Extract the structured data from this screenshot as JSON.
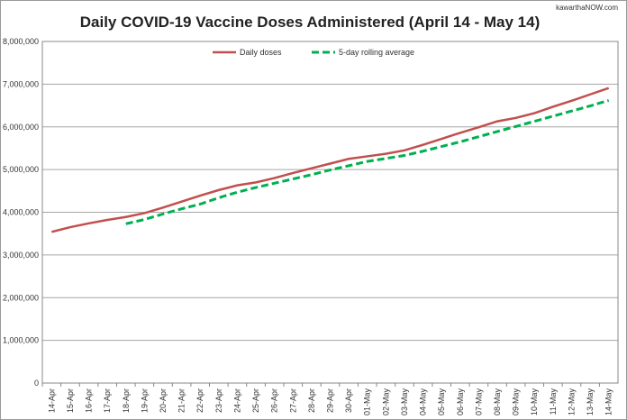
{
  "chart_data": {
    "type": "line",
    "title": "Daily COVID-19 Vaccine Doses Administered (April 14 - May 14)",
    "watermark": "kawarthaNOW.com",
    "categories": [
      "14-Apr",
      "15-Apr",
      "16-Apr",
      "17-Apr",
      "18-Apr",
      "19-Apr",
      "20-Apr",
      "21-Apr",
      "22-Apr",
      "23-Apr",
      "24-Apr",
      "25-Apr",
      "26-Apr",
      "27-Apr",
      "28-Apr",
      "29-Apr",
      "30-Apr",
      "01-May",
      "02-May",
      "03-May",
      "04-May",
      "05-May",
      "06-May",
      "07-May",
      "08-May",
      "09-May",
      "10-May",
      "11-May",
      "12-May",
      "13-May",
      "14-May"
    ],
    "series": [
      {
        "name": "Daily doses",
        "color": "#c0504d",
        "dash": false,
        "values": [
          3540000,
          3650000,
          3740000,
          3820000,
          3890000,
          3980000,
          4110000,
          4250000,
          4390000,
          4520000,
          4630000,
          4700000,
          4800000,
          4920000,
          5030000,
          5140000,
          5250000,
          5310000,
          5370000,
          5450000,
          5580000,
          5720000,
          5860000,
          5990000,
          6130000,
          6210000,
          6320000,
          6470000,
          6610000,
          6760000,
          6910000
        ]
      },
      {
        "name": "5-day rolling average",
        "color": "#00b050",
        "dash": true,
        "values": [
          null,
          null,
          null,
          null,
          3730000,
          3830000,
          3960000,
          4080000,
          4190000,
          4340000,
          4470000,
          4580000,
          4680000,
          4780000,
          4880000,
          4990000,
          5090000,
          5190000,
          5260000,
          5330000,
          5430000,
          5540000,
          5650000,
          5770000,
          5890000,
          6010000,
          6130000,
          6250000,
          6370000,
          6490000,
          6620000
        ]
      }
    ],
    "ylim": [
      0,
      8000000
    ],
    "yticks": [
      0,
      {
        "value": 1000000,
        "label": "1,000,000"
      },
      {
        "value": 2000000,
        "label": "2,000,000"
      },
      {
        "value": 3000000,
        "label": "3,000,000"
      },
      {
        "value": 4000000,
        "label": "4,000,000"
      },
      {
        "value": 5000000,
        "label": "5,000,000"
      },
      {
        "value": 6000000,
        "label": "6,000,000"
      },
      {
        "value": 7000000,
        "label": "7,000,000"
      },
      {
        "value": 8000000,
        "label": "8,000,000"
      }
    ],
    "grid": true,
    "legend": "top"
  }
}
